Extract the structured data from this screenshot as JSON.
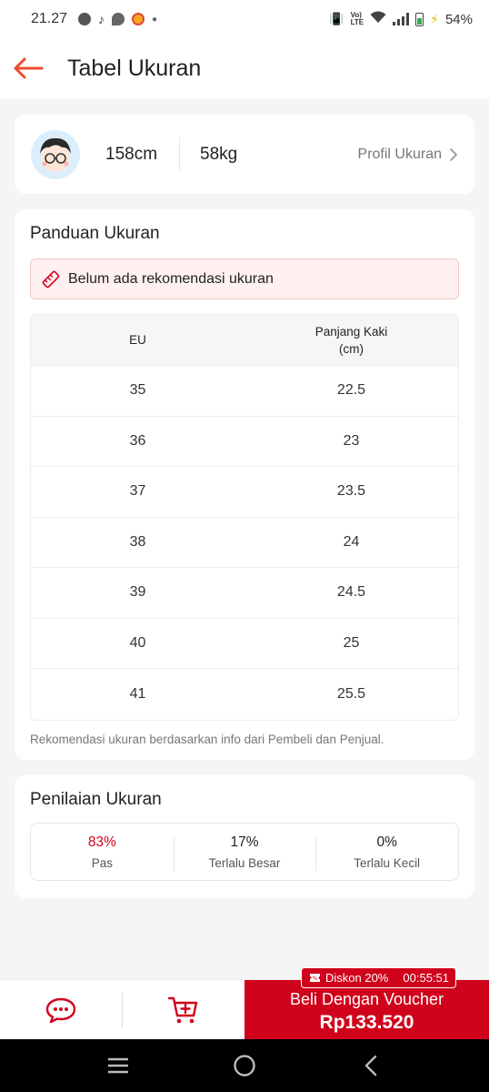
{
  "status_bar": {
    "time": "21.27",
    "battery": "54%"
  },
  "header": {
    "title": "Tabel Ukuran"
  },
  "profile": {
    "height": "158cm",
    "weight": "58kg",
    "link_label": "Profil Ukuran"
  },
  "guide": {
    "title": "Panduan Ukuran",
    "recommendation": "Belum ada rekomendasi ukuran",
    "columns": [
      "EU",
      "Panjang Kaki\n(cm)"
    ],
    "rows": [
      [
        "35",
        "22.5"
      ],
      [
        "36",
        "23"
      ],
      [
        "37",
        "23.5"
      ],
      [
        "38",
        "24"
      ],
      [
        "39",
        "24.5"
      ],
      [
        "40",
        "25"
      ],
      [
        "41",
        "25.5"
      ]
    ],
    "footnote": "Rekomendasi ukuran berdasarkan info dari Pembeli dan Penjual."
  },
  "rating": {
    "title": "Penilaian Ukuran",
    "items": [
      {
        "pct": "83%",
        "label": "Pas"
      },
      {
        "pct": "17%",
        "label": "Terlalu Besar"
      },
      {
        "pct": "0%",
        "label": "Terlalu Kecil"
      }
    ]
  },
  "bottom_bar": {
    "voucher_badge": "Diskon 20%",
    "voucher_timer": "00:55:51",
    "buy_label": "Beli Dengan Voucher",
    "buy_price": "Rp133.520"
  },
  "colors": {
    "accent": "#d0011b",
    "back_arrow": "#ee4d2d",
    "reco_bg": "#fff1f0"
  }
}
